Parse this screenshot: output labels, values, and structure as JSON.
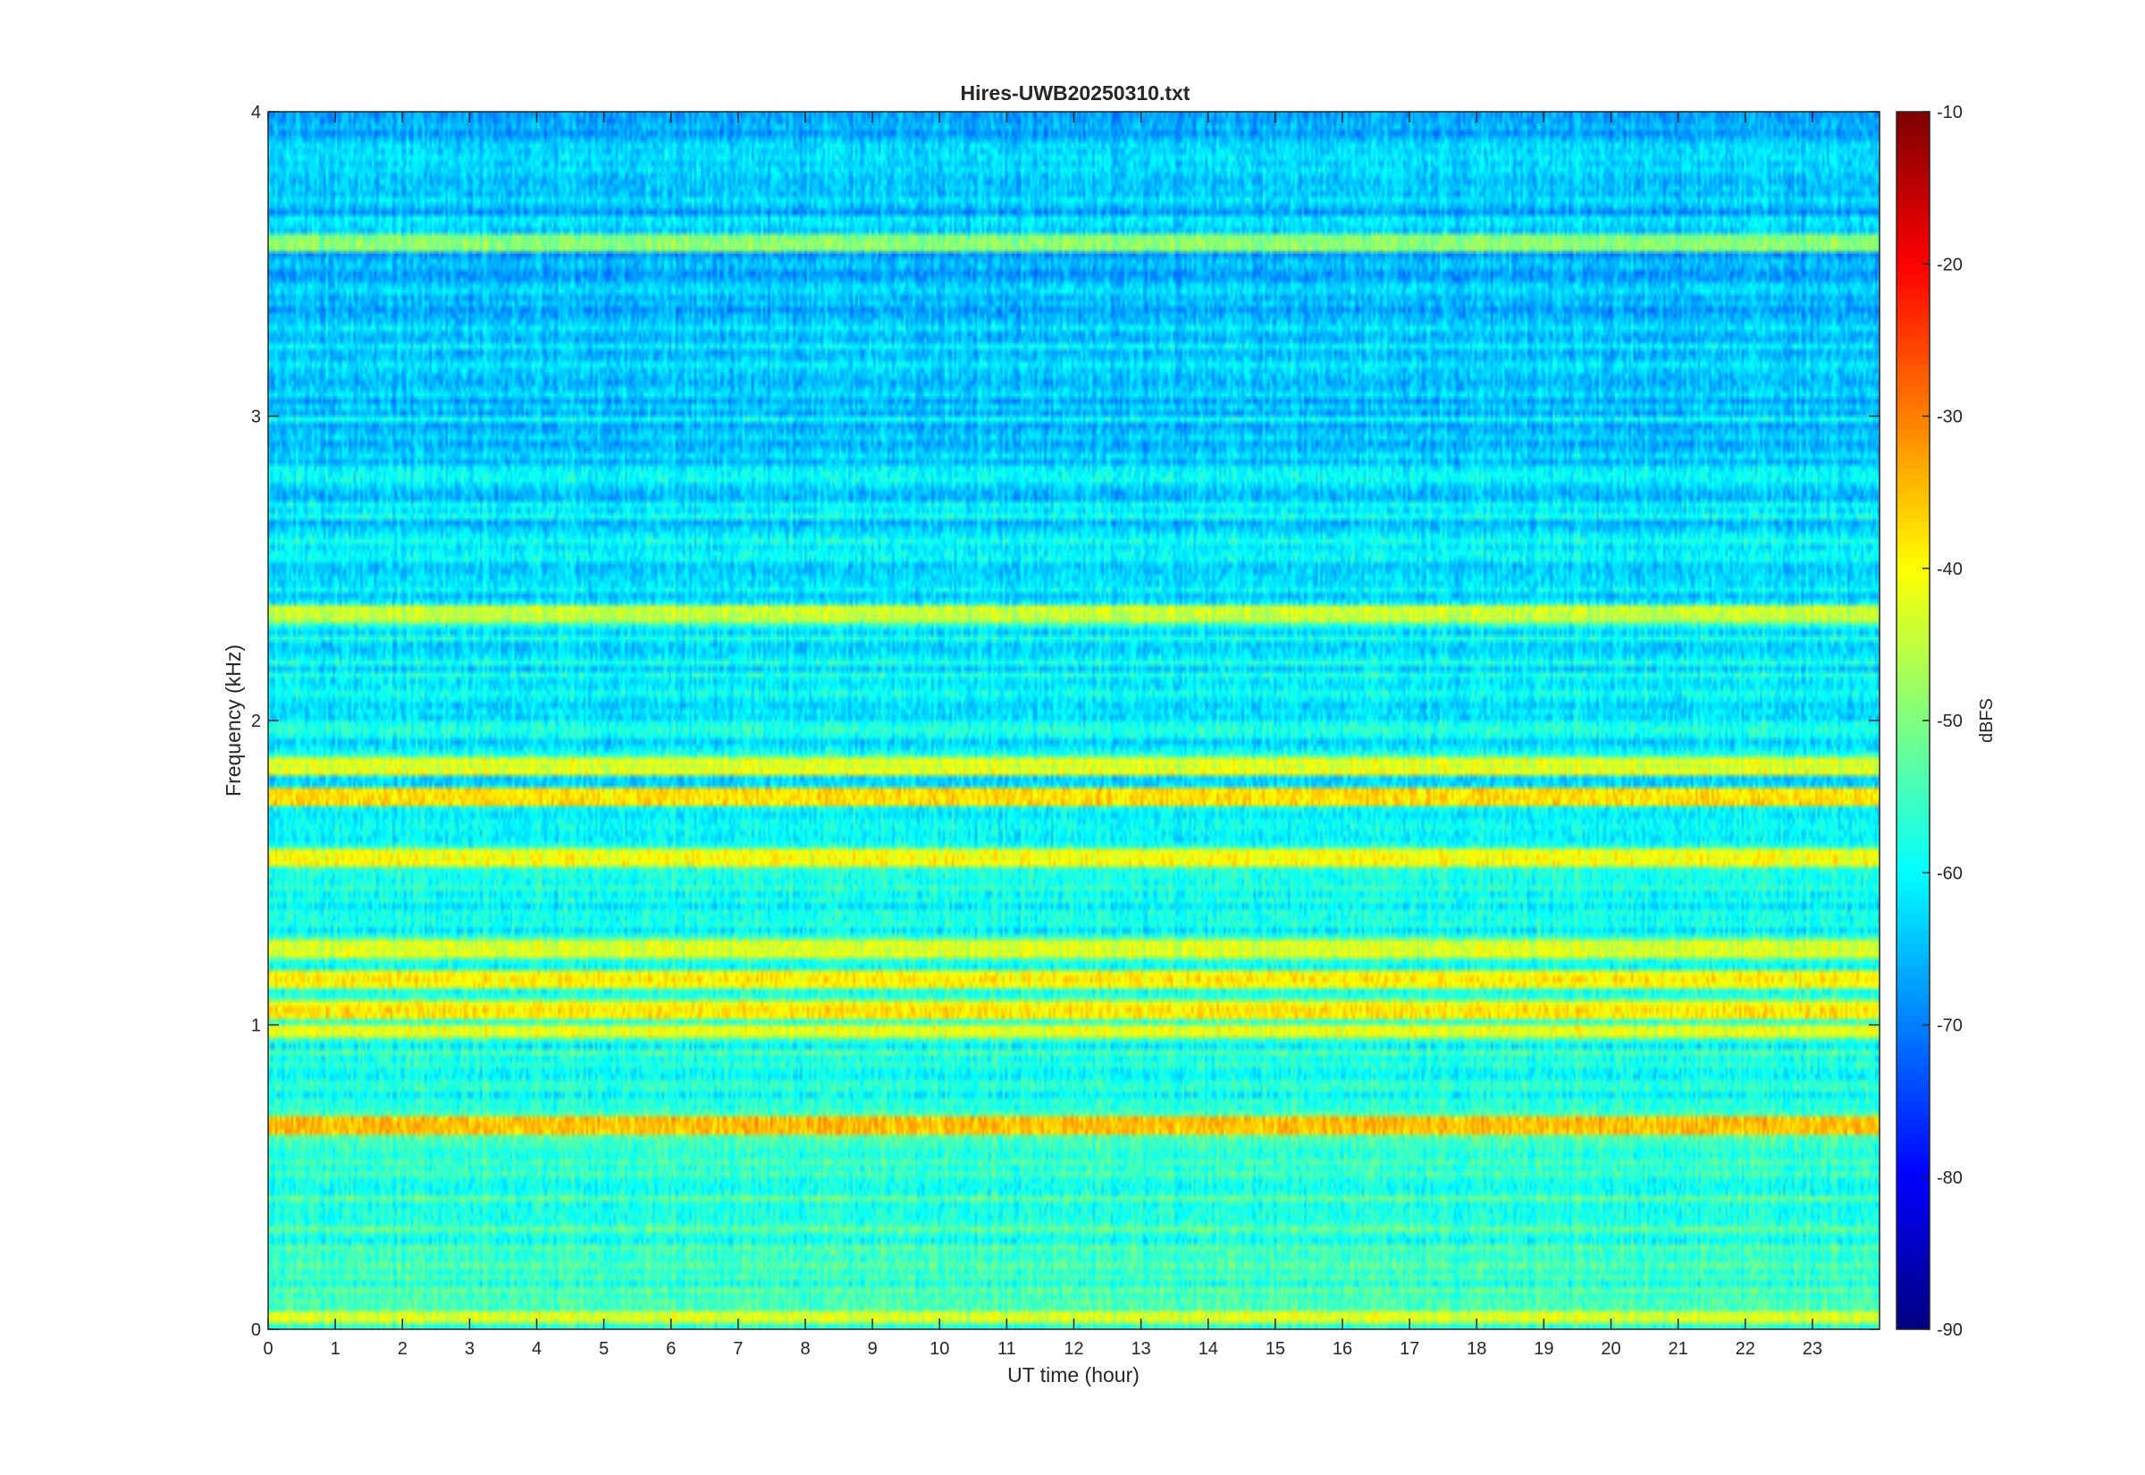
{
  "chart_data": {
    "type": "heatmap",
    "title": "Hires-UWB20250310.txt",
    "xlabel": "UT time (hour)",
    "ylabel": "Frequency (kHz)",
    "xlim": [
      0,
      24
    ],
    "ylim": [
      0,
      4
    ],
    "x_ticks": [
      "0",
      "1",
      "2",
      "3",
      "4",
      "5",
      "6",
      "7",
      "8",
      "9",
      "10",
      "11",
      "12",
      "13",
      "14",
      "15",
      "16",
      "17",
      "18",
      "19",
      "20",
      "21",
      "22",
      "23"
    ],
    "y_ticks": [
      "0",
      "1",
      "2",
      "3",
      "4"
    ],
    "colorbar": {
      "label": "dBFS",
      "range": [
        -90,
        -10
      ],
      "ticks": [
        "-10",
        "-20",
        "-30",
        "-40",
        "-50",
        "-60",
        "-70",
        "-80",
        "-90"
      ],
      "colormap": "jet"
    },
    "bands_khz": [
      {
        "freq": 0.04,
        "level_dbfs": -44
      },
      {
        "freq": 0.66,
        "level_dbfs": -36
      },
      {
        "freq": 0.98,
        "level_dbfs": -42
      },
      {
        "freq": 1.05,
        "level_dbfs": -39
      },
      {
        "freq": 1.15,
        "level_dbfs": -40
      },
      {
        "freq": 1.25,
        "level_dbfs": -42
      },
      {
        "freq": 1.55,
        "level_dbfs": -40
      },
      {
        "freq": 1.75,
        "level_dbfs": -38
      },
      {
        "freq": 1.85,
        "level_dbfs": -43
      },
      {
        "freq": 2.35,
        "level_dbfs": -45
      },
      {
        "freq": 3.57,
        "level_dbfs": -50
      }
    ],
    "noise_floor_dbfs": {
      "low_freq": -55,
      "high_freq": -66
    }
  },
  "colors": {
    "background": "#ffffff",
    "axis": "#262626"
  }
}
